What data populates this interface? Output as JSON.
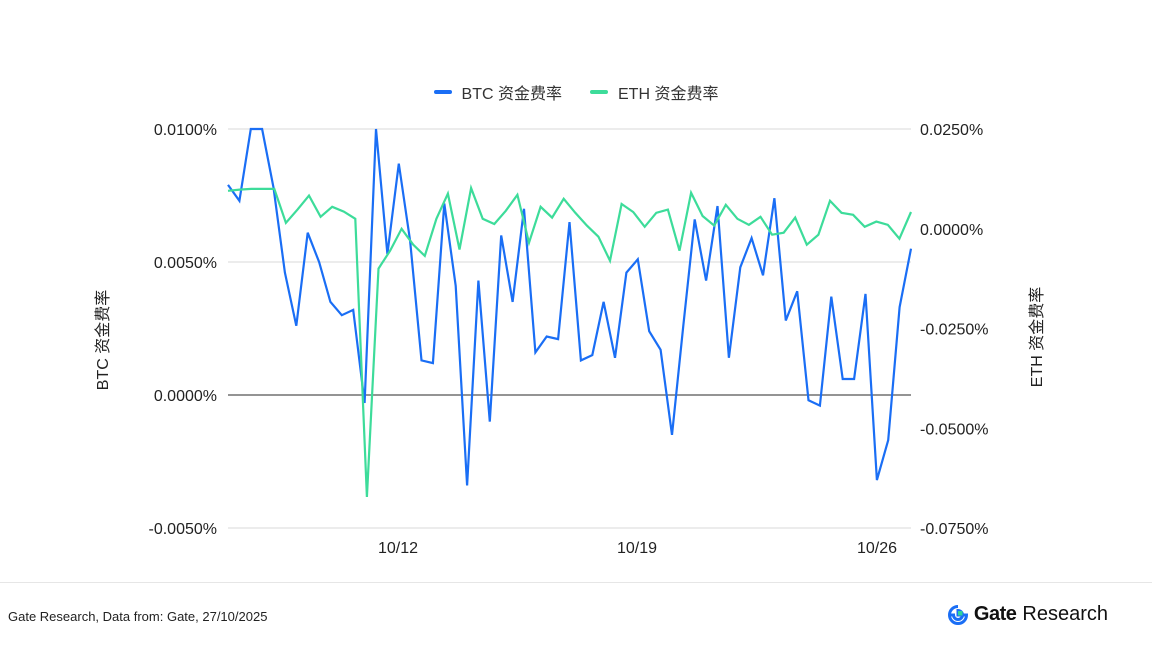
{
  "chart_data": {
    "type": "line",
    "title": "",
    "legend_position": "top-center",
    "grid": true,
    "x_ticks": [
      "10/12",
      "10/19",
      "10/26"
    ],
    "left_axis": {
      "label": "BTC  资金费率",
      "ylim": [
        -0.005,
        0.01
      ],
      "ticks": [
        "0.0100%",
        "0.0050%",
        "0.0000%",
        "-0.0050%"
      ],
      "tick_values": [
        0.01,
        0.005,
        0.0,
        -0.005
      ]
    },
    "right_axis": {
      "label": "ETH  资金费率",
      "ylim": [
        -0.075,
        0.025
      ],
      "ticks": [
        "0.0250%",
        "0.0000%",
        "-0.0250%",
        "-0.0500%",
        "-0.0750%"
      ],
      "tick_values": [
        0.025,
        0.0,
        -0.025,
        -0.05,
        -0.075
      ]
    },
    "series": [
      {
        "name": "BTC 资金费率",
        "axis": "left",
        "color": "#1a6ef5",
        "values": [
          0.0079,
          0.0073,
          0.01,
          0.01,
          0.0078,
          0.0046,
          0.0026,
          0.0061,
          0.005,
          0.0035,
          0.003,
          0.0032,
          -0.0003,
          0.01,
          0.0053,
          0.0087,
          0.0058,
          0.0013,
          0.0012,
          0.0072,
          0.0041,
          -0.0034,
          0.0043,
          -0.001,
          0.006,
          0.0035,
          0.007,
          0.0016,
          0.0022,
          0.0021,
          0.0065,
          0.0013,
          0.0015,
          0.0035,
          0.0014,
          0.0046,
          0.0051,
          0.0024,
          0.0017,
          -0.0015,
          0.0026,
          0.0066,
          0.0043,
          0.0071,
          0.0014,
          0.0048,
          0.0059,
          0.0045,
          0.0074,
          0.0028,
          0.0039,
          -0.0002,
          -0.0004,
          0.0037,
          0.0006,
          0.0006,
          0.0038,
          -0.0032,
          -0.0017,
          0.0033,
          0.0055
        ]
      },
      {
        "name": "ETH  资金费率",
        "axis": "right",
        "color": "#3ddc9a",
        "values": [
          0.0095,
          0.0098,
          0.01,
          0.01,
          0.01,
          0.0015,
          0.0048,
          0.0083,
          0.003,
          0.0055,
          0.0043,
          0.0025,
          -0.0672,
          -0.01,
          -0.0055,
          0.0,
          -0.004,
          -0.0068,
          0.0025,
          0.0088,
          -0.0052,
          0.0102,
          0.0025,
          0.0012,
          0.0045,
          0.0085,
          -0.0035,
          0.0055,
          0.0028,
          0.0075,
          0.004,
          0.0008,
          -0.002,
          -0.008,
          0.0062,
          0.0042,
          0.0005,
          0.004,
          0.0048,
          -0.0055,
          0.009,
          0.0032,
          0.0008,
          0.006,
          0.0025,
          0.001,
          0.003,
          -0.0015,
          -0.001,
          0.0028,
          -0.004,
          -0.0015,
          0.007,
          0.004,
          0.0035,
          0.0005,
          0.0018,
          0.001,
          -0.0025,
          0.0042
        ]
      }
    ]
  },
  "legend": [
    {
      "label": "BTC 资金费率",
      "color": "#1a6ef5"
    },
    {
      "label": "ETH  资金费率",
      "color": "#3ddc9a"
    }
  ],
  "footer": {
    "source": "Gate Research, Data from: Gate, 27/10/2025",
    "brand_name": "Gate",
    "brand_sub": "Research"
  }
}
